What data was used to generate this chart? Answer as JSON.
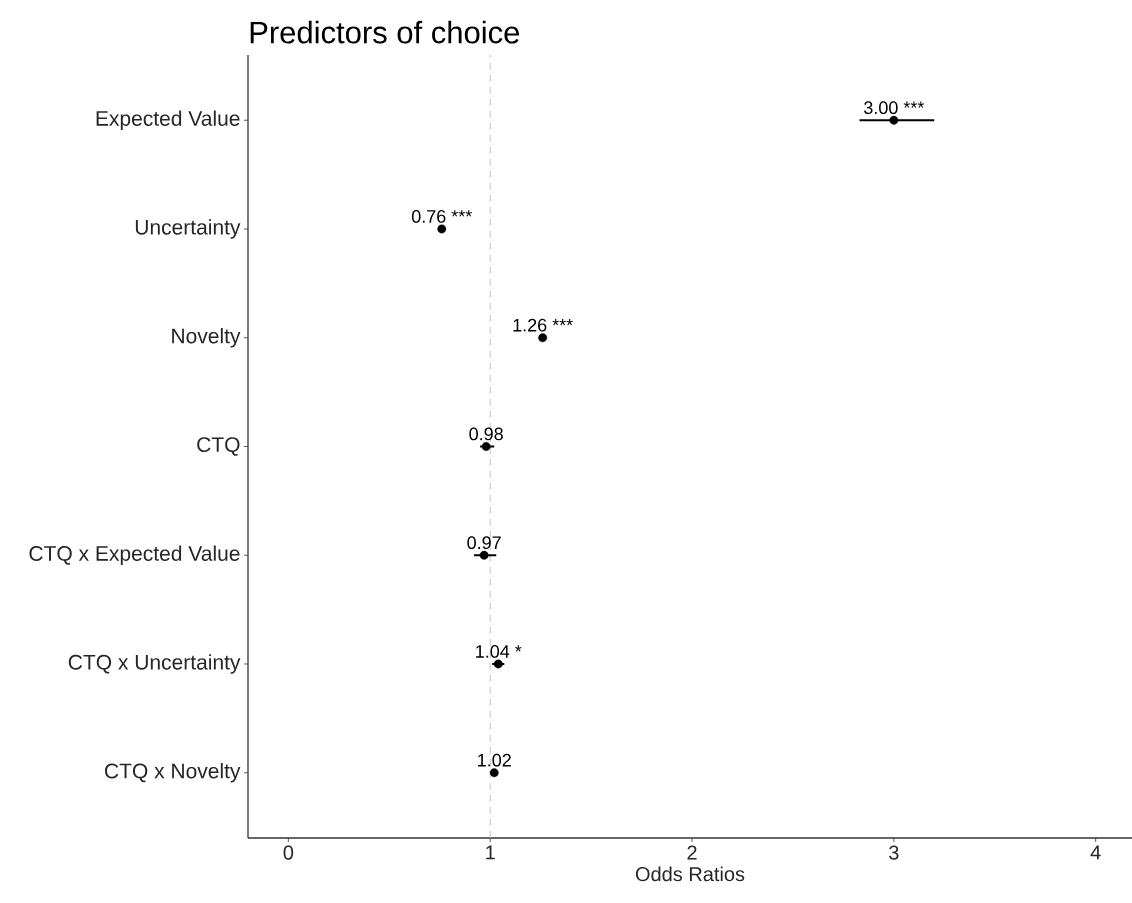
{
  "chart_data": {
    "type": "scatter",
    "orientation": "horizontal",
    "title": "Predictors of choice",
    "xlabel": "Odds Ratios",
    "categories": [
      "Expected Value",
      "Uncertainty",
      "Novelty",
      "CTQ",
      "CTQ x Expected Value",
      "CTQ x Uncertainty",
      "CTQ x Novelty"
    ],
    "values": [
      3.0,
      0.76,
      1.26,
      0.98,
      0.97,
      1.04,
      1.02
    ],
    "errors": [
      [
        2.83,
        3.2
      ],
      null,
      null,
      [
        0.95,
        1.02
      ],
      [
        0.92,
        1.03
      ],
      [
        1.01,
        1.07
      ],
      null
    ],
    "value_labels": [
      "3.00 ***",
      "0.76 ***",
      "1.26 ***",
      "0.98",
      "0.97",
      "1.04 *",
      "1.02"
    ],
    "color": "#000000",
    "marker": "circle",
    "xlim": [
      -0.2,
      4.18
    ],
    "xticks": [
      0,
      1,
      2,
      3,
      4
    ],
    "ref_lines": [
      {
        "axis": "x",
        "value": 1,
        "color": "#bfbfbf",
        "line_style": "dashed"
      }
    ]
  }
}
